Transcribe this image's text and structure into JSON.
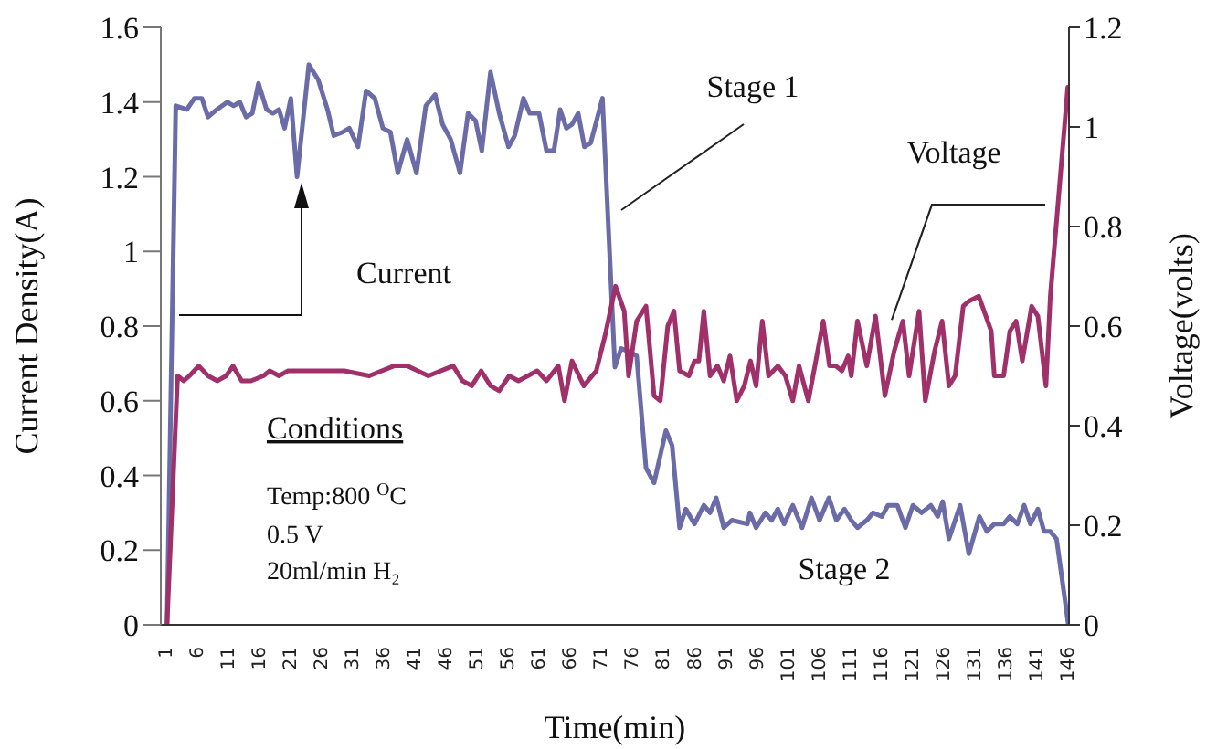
{
  "chart_data": {
    "type": "line",
    "xlabel": "Time(min)",
    "ylabel": "Current Density(A)",
    "y2label": "Voltage(volts)",
    "xlim": [
      0,
      146
    ],
    "xticks": [
      1,
      6,
      11,
      16,
      21,
      26,
      31,
      36,
      41,
      46,
      51,
      56,
      61,
      66,
      71,
      76,
      81,
      86,
      91,
      96,
      101,
      106,
      111,
      116,
      121,
      126,
      131,
      136,
      141,
      146
    ],
    "ylim": [
      0,
      1.6
    ],
    "yticks": [
      0,
      0.2,
      0.4,
      0.6,
      0.8,
      1,
      1.2,
      1.4,
      1.6
    ],
    "y2lim": [
      0,
      1.2
    ],
    "y2ticks": [
      0,
      0.2,
      0.4,
      0.6,
      0.8,
      1,
      1.2
    ],
    "annotations": [
      "Stage 1",
      "Voltage",
      "Current",
      "Conditions",
      "Temp:800 $^{O}$C",
      "0.5 V",
      "20ml/min H₂",
      "Stage 2"
    ],
    "series": [
      {
        "color": "#6b6ba8",
        "x": [
          1,
          2.4,
          4.2,
          5.4,
          6.6,
          7.6,
          9,
          10.7,
          11.7,
          12.7,
          13.7,
          14.7,
          15.7,
          17,
          18,
          19,
          19.9,
          20.9,
          21.9,
          23.8,
          25.3,
          26.8,
          27.8,
          29.3,
          30.3,
          31.7,
          33,
          34.4,
          35.7,
          36.9,
          38.1,
          39.6,
          41.1,
          42.6,
          44.1,
          45.3,
          46.6,
          48.1,
          49.4,
          50.6,
          51.6,
          53,
          54.4,
          55.9,
          56.9,
          58.3,
          59.3,
          60.8,
          62,
          63.2,
          64.2,
          65.2,
          66.1,
          67.1,
          68.1,
          69.1,
          71,
          73,
          74,
          75.5,
          76.5,
          78,
          79.3,
          81.2,
          82.2,
          83.4,
          84.4,
          85.8,
          87.3,
          88.3,
          89.3,
          90.5,
          91.8,
          94.3,
          94.7,
          95.7,
          97.2,
          98.2,
          99.2,
          100.2,
          101.6,
          103.1,
          104.6,
          105.9,
          107.4,
          108.6,
          109.9,
          111,
          112,
          113.5,
          114.5,
          115.9,
          116.9,
          118.4,
          119.7,
          120.9,
          122.3,
          123.8,
          124.9,
          125.7,
          126.7,
          128.5,
          129.9,
          131.6,
          132.8,
          134,
          135.5,
          136.5,
          137.7,
          138.8,
          139.8,
          141,
          142,
          143,
          144,
          145.9
        ],
        "values": [
          0,
          1.39,
          1.38,
          1.41,
          1.41,
          1.36,
          1.38,
          1.4,
          1.39,
          1.4,
          1.36,
          1.37,
          1.45,
          1.38,
          1.37,
          1.38,
          1.33,
          1.41,
          1.2,
          1.5,
          1.46,
          1.38,
          1.31,
          1.32,
          1.33,
          1.28,
          1.43,
          1.41,
          1.33,
          1.32,
          1.21,
          1.3,
          1.21,
          1.39,
          1.42,
          1.34,
          1.3,
          1.21,
          1.37,
          1.35,
          1.27,
          1.48,
          1.37,
          1.28,
          1.31,
          1.41,
          1.37,
          1.37,
          1.27,
          1.27,
          1.38,
          1.33,
          1.34,
          1.37,
          1.28,
          1.29,
          1.41,
          0.69,
          0.74,
          0.73,
          0.72,
          0.42,
          0.38,
          0.52,
          0.48,
          0.26,
          0.31,
          0.27,
          0.32,
          0.3,
          0.34,
          0.26,
          0.28,
          0.27,
          0.3,
          0.26,
          0.3,
          0.28,
          0.31,
          0.27,
          0.32,
          0.26,
          0.34,
          0.28,
          0.34,
          0.28,
          0.31,
          0.28,
          0.26,
          0.28,
          0.3,
          0.29,
          0.32,
          0.32,
          0.26,
          0.32,
          0.3,
          0.32,
          0.29,
          0.33,
          0.23,
          0.32,
          0.19,
          0.29,
          0.25,
          0.27,
          0.27,
          0.29,
          0.27,
          0.32,
          0.27,
          0.31,
          0.25,
          0.25,
          0.23,
          0
        ]
      },
      {
        "color": "#a0306a",
        "axis": "y2",
        "x": [
          1,
          2.7,
          3.7,
          4.6,
          6.1,
          7.6,
          9.1,
          10.5,
          11.6,
          13,
          14.5,
          16.5,
          17.5,
          19,
          20.4,
          25.5,
          29.5,
          33.5,
          37.5,
          39.6,
          43,
          47,
          48.5,
          50,
          51.5,
          53,
          54.4,
          56,
          57.5,
          59,
          60.5,
          62,
          63.9,
          64.9,
          66.1,
          68,
          70,
          71.4,
          73.1,
          74.5,
          75.2,
          76.5,
          78,
          79.3,
          80.3,
          81.5,
          82.5,
          83.4,
          84.9,
          85.8,
          86.5,
          87.3,
          88.3,
          89.5,
          90.5,
          91.5,
          92.6,
          93.8,
          94.8,
          95.7,
          96.7,
          97.7,
          99.2,
          100.4,
          101.6,
          102.6,
          104.1,
          106.5,
          107.5,
          108.5,
          109.5,
          110.5,
          111,
          112,
          113.5,
          114.9,
          116.4,
          117.9,
          119.3,
          120.3,
          121.9,
          122.9,
          124.4,
          125.6,
          126.7,
          127.7,
          129,
          129.9,
          131.5,
          133.5,
          134,
          135.5,
          136.5,
          137.5,
          138.5,
          140,
          141,
          142.3,
          143,
          144.4,
          145.8,
          146
        ],
        "values": [
          0,
          0.5,
          0.49,
          0.5,
          0.52,
          0.5,
          0.49,
          0.5,
          0.52,
          0.49,
          0.49,
          0.5,
          0.51,
          0.5,
          0.51,
          0.51,
          0.51,
          0.5,
          0.52,
          0.52,
          0.5,
          0.52,
          0.49,
          0.48,
          0.51,
          0.48,
          0.47,
          0.5,
          0.49,
          0.5,
          0.51,
          0.49,
          0.52,
          0.45,
          0.53,
          0.48,
          0.51,
          0.58,
          0.68,
          0.63,
          0.5,
          0.61,
          0.64,
          0.46,
          0.45,
          0.6,
          0.63,
          0.51,
          0.5,
          0.53,
          0.53,
          0.63,
          0.5,
          0.52,
          0.49,
          0.54,
          0.45,
          0.48,
          0.53,
          0.48,
          0.61,
          0.5,
          0.52,
          0.5,
          0.45,
          0.52,
          0.45,
          0.61,
          0.52,
          0.52,
          0.51,
          0.54,
          0.5,
          0.61,
          0.52,
          0.62,
          0.46,
          0.55,
          0.61,
          0.5,
          0.63,
          0.45,
          0.55,
          0.61,
          0.48,
          0.5,
          0.64,
          0.65,
          0.66,
          0.59,
          0.5,
          0.5,
          0.59,
          0.61,
          0.53,
          0.64,
          0.62,
          0.48,
          0.66,
          0.87,
          1.08,
          1.08
        ]
      }
    ]
  }
}
